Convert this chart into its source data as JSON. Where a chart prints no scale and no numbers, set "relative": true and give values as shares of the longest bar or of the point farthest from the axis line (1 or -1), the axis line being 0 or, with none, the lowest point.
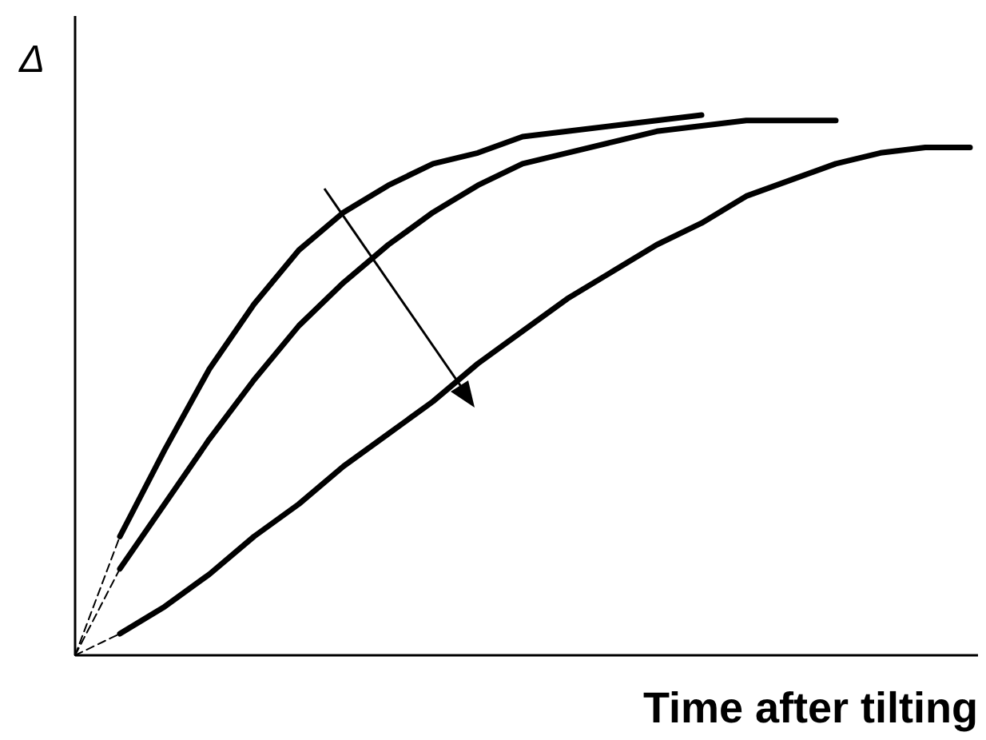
{
  "chart_data": {
    "type": "line",
    "relative": true,
    "xlabel": "Time after tilting",
    "ylabel": "Δ",
    "categories": [
      null,
      null,
      null,
      null,
      null,
      null,
      null,
      null,
      null,
      null,
      null,
      null,
      null,
      null,
      null,
      null,
      null,
      null,
      null,
      null,
      null
    ],
    "series": [
      {
        "color": "#000000",
        "line_style": "dashed",
        "values": [
          0,
          0.22,
          null,
          null,
          null,
          null,
          null,
          null,
          null,
          null,
          null,
          null,
          null,
          null,
          null,
          null,
          null,
          null,
          null,
          null,
          null
        ]
      },
      {
        "color": "#000000",
        "line_style": "dashed",
        "values": [
          0,
          0.16,
          null,
          null,
          null,
          null,
          null,
          null,
          null,
          null,
          null,
          null,
          null,
          null,
          null,
          null,
          null,
          null,
          null,
          null,
          null
        ]
      },
      {
        "color": "#000000",
        "line_style": "dashed",
        "values": [
          0,
          0.04,
          null,
          null,
          null,
          null,
          null,
          null,
          null,
          null,
          null,
          null,
          null,
          null,
          null,
          null,
          null,
          null,
          null,
          null,
          null
        ]
      },
      {
        "color": "#000000",
        "line_style": "solid",
        "values": [
          null,
          0.22,
          0.38,
          0.53,
          0.65,
          0.75,
          0.82,
          0.87,
          0.91,
          0.93,
          0.96,
          0.97,
          0.98,
          0.99,
          1.0,
          null,
          null,
          null,
          null,
          null,
          null
        ]
      },
      {
        "color": "#000000",
        "line_style": "solid",
        "values": [
          null,
          0.16,
          0.28,
          0.4,
          0.51,
          0.61,
          0.69,
          0.76,
          0.82,
          0.87,
          0.91,
          0.93,
          0.95,
          0.97,
          0.98,
          0.99,
          0.99,
          0.99,
          null,
          null,
          null
        ]
      },
      {
        "color": "#000000",
        "line_style": "solid",
        "values": [
          null,
          0.04,
          0.09,
          0.15,
          0.22,
          0.28,
          0.35,
          0.41,
          0.47,
          0.54,
          0.6,
          0.66,
          0.71,
          0.76,
          0.8,
          0.85,
          0.88,
          0.91,
          0.93,
          0.94,
          0.94
        ]
      }
    ]
  }
}
